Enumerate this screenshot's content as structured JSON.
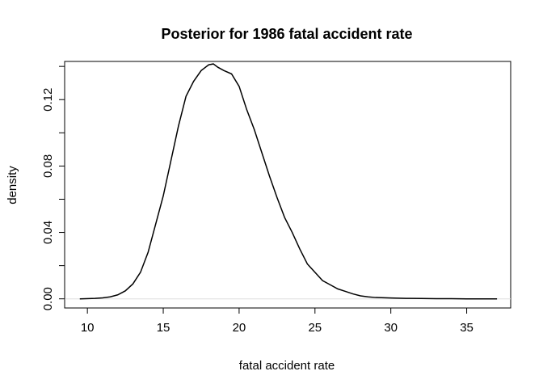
{
  "chart_data": {
    "type": "line",
    "title": "Posterior for 1986 fatal accident rate",
    "xlabel": "fatal accident rate",
    "ylabel": "density",
    "xlim": [
      8.5,
      37.9
    ],
    "ylim": [
      -0.0055,
      0.143
    ],
    "x_ticks": [
      10,
      15,
      20,
      25,
      30,
      35
    ],
    "x_tick_labels": [
      "10",
      "15",
      "20",
      "25",
      "30",
      "35"
    ],
    "y_ticks": [
      0.0,
      0.04,
      0.08,
      0.12
    ],
    "y_tick_labels": [
      "0.00",
      "0.04",
      "0.08",
      "0.12"
    ],
    "grid": false,
    "line_color": "#000000",
    "baseline_color": "#dddddd",
    "series": [
      {
        "x": [
          9.5,
          10.5,
          11.0,
          11.5,
          12.0,
          12.5,
          13.0,
          13.5,
          14.0,
          14.5,
          15.0,
          15.5,
          16.0,
          16.5,
          17.0,
          17.5,
          18.0,
          18.3,
          18.6,
          19.0,
          19.5,
          20.0,
          20.5,
          21.0,
          21.5,
          22.0,
          22.5,
          23.0,
          23.5,
          24.0,
          24.5,
          25.0,
          25.5,
          26.0,
          26.5,
          27.0,
          27.5,
          28.0,
          28.5,
          29.0,
          30.0,
          31.0,
          32.0,
          33.0,
          34.0,
          35.0,
          36.0,
          37.0
        ],
        "y": [
          0.0,
          0.0003,
          0.0006,
          0.0012,
          0.0024,
          0.0048,
          0.009,
          0.016,
          0.028,
          0.045,
          0.062,
          0.083,
          0.104,
          0.122,
          0.131,
          0.1375,
          0.141,
          0.1415,
          0.1395,
          0.1375,
          0.1355,
          0.128,
          0.114,
          0.102,
          0.088,
          0.074,
          0.061,
          0.049,
          0.04,
          0.03,
          0.021,
          0.016,
          0.011,
          0.0085,
          0.006,
          0.0045,
          0.003,
          0.0018,
          0.0012,
          0.0008,
          0.0005,
          0.0003,
          0.0002,
          0.0001,
          0.0001,
          0.0,
          0.0,
          0.0
        ]
      }
    ]
  }
}
